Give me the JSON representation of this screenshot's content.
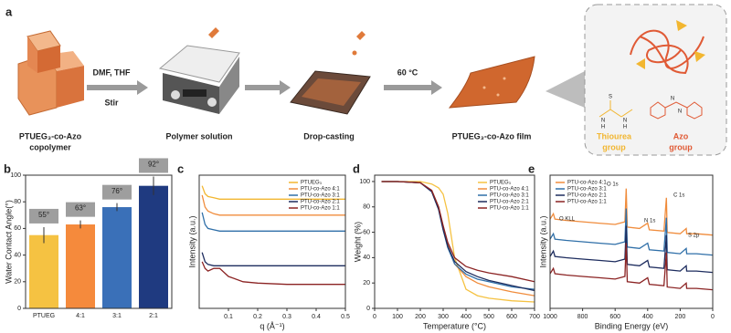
{
  "scheme": {
    "panel": "a",
    "copolymer": [
      "PTUEG₃-co-Azo",
      "copolymer"
    ],
    "solvent": "DMF, THF",
    "stir": "Stir",
    "solution": "Polymer solution",
    "casting": "Drop-casting",
    "temperature": "60 °C",
    "film": "PTUEG₃-co-Azo film",
    "thiourea": [
      "Thiourea",
      "group"
    ],
    "azo": [
      "Azo",
      "group"
    ],
    "atoms": [
      "S",
      "N",
      "N",
      "H",
      "H",
      "N",
      "N"
    ]
  },
  "chart_data": [
    {
      "type": "bar",
      "panel": "b",
      "ylabel": "Water Contact Angle(°)",
      "categories": [
        "PTUEG",
        "4:1",
        "3:1",
        "2:1"
      ],
      "values": [
        55,
        63,
        76,
        92
      ],
      "errors": [
        6,
        3,
        3,
        7
      ],
      "value_labels": [
        "55°",
        "63°",
        "76°",
        "92°"
      ],
      "colors": [
        "#f5c242",
        "#f58a3c",
        "#3a70b8",
        "#1f3a80"
      ],
      "ylim": [
        0,
        100
      ],
      "yticks": [
        0,
        20,
        40,
        60,
        80,
        100
      ]
    },
    {
      "type": "line",
      "panel": "c",
      "xlabel": "q (Å⁻¹)",
      "ylabel": "Intensity (a.u.)",
      "legend": "upper right",
      "x": [
        0.01,
        0.02,
        0.03,
        0.05,
        0.07,
        0.1,
        0.15,
        0.2,
        0.3,
        0.4,
        0.5
      ],
      "xlim": [
        0,
        0.5
      ],
      "xticks": [
        0.1,
        0.2,
        0.3,
        0.4,
        0.5
      ],
      "ylim": [
        0,
        100
      ],
      "series": [
        {
          "name": "PTUEG₃",
          "color": "#f2b630",
          "values": [
            92,
            86,
            84,
            83,
            82,
            82,
            82,
            82,
            82,
            82,
            82
          ]
        },
        {
          "name": "PTU-co-Azo 4:1",
          "color": "#f08c3c",
          "values": [
            85,
            76,
            73,
            71,
            70,
            70,
            70,
            70,
            70,
            70,
            70
          ]
        },
        {
          "name": "PTU-co-Azo 3:1",
          "color": "#2f6fa8",
          "values": [
            72,
            63,
            60,
            59,
            58,
            58,
            58,
            58,
            58,
            58,
            58
          ]
        },
        {
          "name": "PTU-co-Azo 2:1",
          "color": "#1d2c5e",
          "values": [
            42,
            35,
            33,
            32,
            32,
            32,
            32,
            32,
            32,
            32,
            32
          ]
        },
        {
          "name": "PTU-co-Azo 1:1",
          "color": "#8b2323",
          "values": [
            35,
            30,
            28,
            30,
            30,
            24,
            20,
            19,
            18,
            18,
            18
          ]
        }
      ]
    },
    {
      "type": "line",
      "panel": "d",
      "xlabel": "Temperature (°C)",
      "ylabel": "Weight (%)",
      "legend": "upper right",
      "x": [
        30,
        100,
        200,
        250,
        280,
        300,
        320,
        350,
        400,
        450,
        500,
        600,
        700
      ],
      "xlim": [
        0,
        700
      ],
      "xticks": [
        0,
        100,
        200,
        300,
        400,
        500,
        600,
        700
      ],
      "ylim": [
        0,
        105
      ],
      "yticks": [
        0,
        20,
        40,
        60,
        80,
        100
      ],
      "series": [
        {
          "name": "PTUEG₃",
          "color": "#f5c242",
          "values": [
            100,
            100,
            100,
            98,
            95,
            90,
            75,
            40,
            15,
            10,
            8,
            6,
            5
          ]
        },
        {
          "name": "PTU-co-Azo 4:1",
          "color": "#f08c3c",
          "values": [
            100,
            100,
            99,
            93,
            80,
            65,
            50,
            35,
            25,
            20,
            17,
            13,
            10
          ]
        },
        {
          "name": "PTU-co-Azo 3:1",
          "color": "#2f6fa8",
          "values": [
            100,
            100,
            99,
            92,
            78,
            62,
            48,
            35,
            27,
            23,
            21,
            17,
            15
          ]
        },
        {
          "name": "PTU-co-Azo 2:1",
          "color": "#1d2c5e",
          "values": [
            100,
            100,
            99,
            92,
            78,
            62,
            49,
            37,
            29,
            25,
            22,
            18,
            14
          ]
        },
        {
          "name": "PTU-co-Azo 1:1",
          "color": "#8b2323",
          "values": [
            100,
            100,
            99,
            93,
            80,
            65,
            52,
            40,
            33,
            30,
            28,
            25,
            21
          ]
        }
      ]
    },
    {
      "type": "line",
      "panel": "e",
      "xlabel": "Binding Energy (eV)",
      "ylabel": "Intensity (a.u.)",
      "legend": "upper left",
      "annotations": [
        "O KLL",
        "O 1s",
        "N 1s",
        "C 1s",
        "S 2p"
      ],
      "x": [
        1000,
        980,
        970,
        900,
        800,
        700,
        600,
        540,
        532,
        525,
        450,
        400,
        390,
        300,
        285,
        280,
        200,
        163,
        160,
        100,
        0
      ],
      "xlim": [
        1000,
        0
      ],
      "xticks": [
        1000,
        800,
        600,
        400,
        200,
        0
      ],
      "ylim": [
        0,
        100
      ],
      "series": [
        {
          "name": "PTU-co-Azo 4:1",
          "color": "#f08c3c",
          "values": [
            67,
            71,
            67,
            66,
            65,
            64,
            63,
            65,
            90,
            61,
            60,
            64,
            59,
            58,
            83,
            57,
            56,
            60,
            56,
            56,
            55
          ]
        },
        {
          "name": "PTU-co-Azo 3:1",
          "color": "#2f6fa8",
          "values": [
            52,
            56,
            52,
            51,
            50,
            49,
            48,
            50,
            75,
            46,
            45,
            49,
            44,
            43,
            68,
            42,
            41,
            45,
            41,
            41,
            40
          ]
        },
        {
          "name": "PTU-co-Azo 2:1",
          "color": "#1d2c5e",
          "values": [
            39,
            43,
            39,
            38,
            37,
            36,
            35,
            37,
            62,
            33,
            32,
            36,
            31,
            30,
            55,
            29,
            28,
            32,
            28,
            28,
            27
          ]
        },
        {
          "name": "PTU-co-Azo 1:1",
          "color": "#8b2323",
          "values": [
            26,
            30,
            26,
            25,
            24,
            23,
            22,
            24,
            49,
            20,
            19,
            23,
            18,
            17,
            42,
            16,
            15,
            19,
            15,
            15,
            14
          ]
        }
      ]
    }
  ]
}
